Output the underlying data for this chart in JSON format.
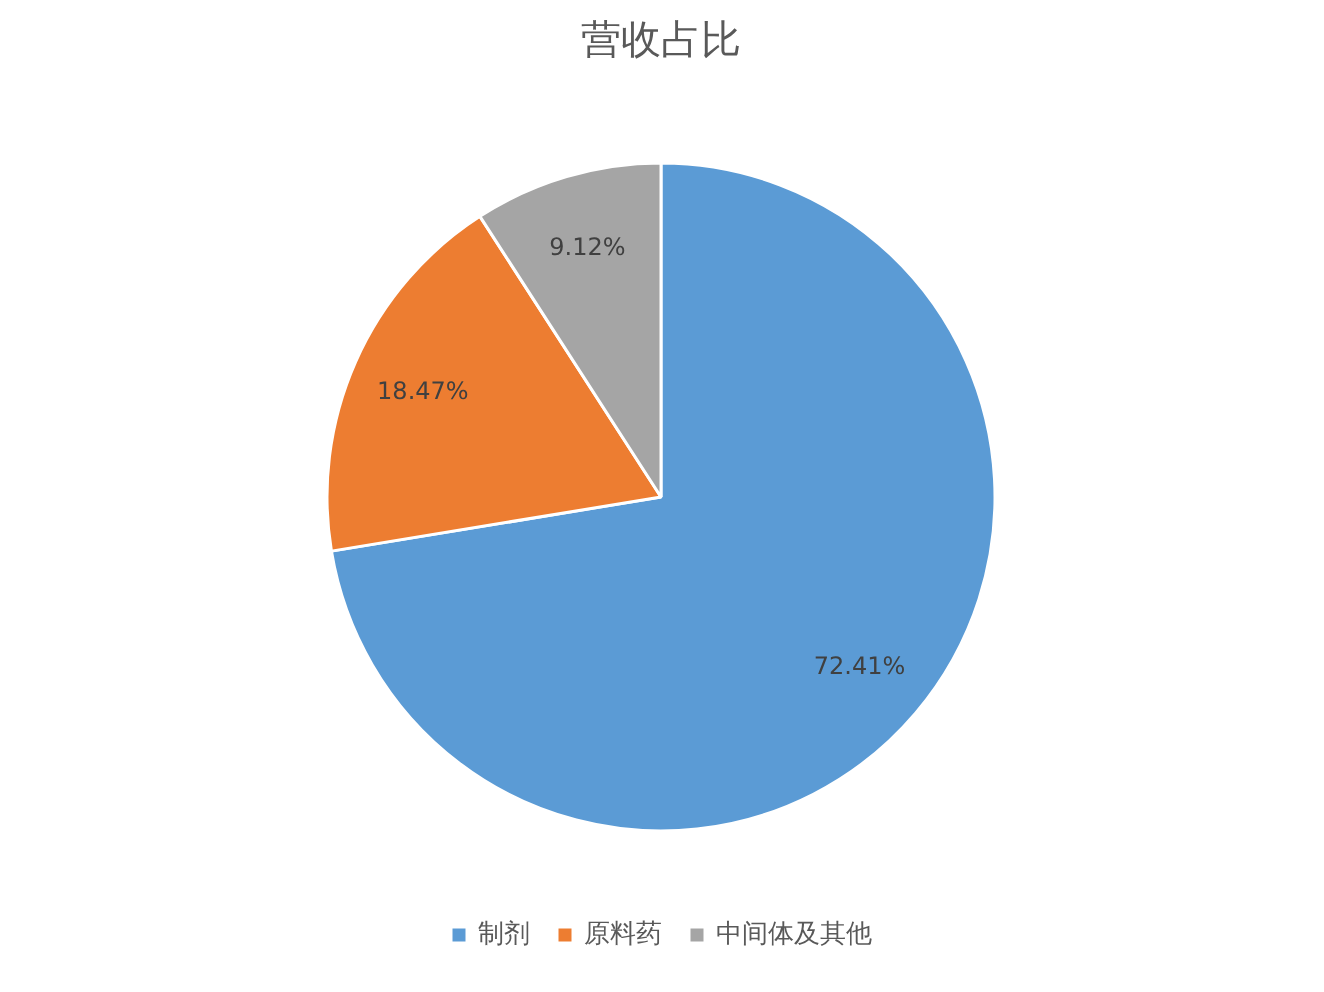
{
  "chart_data": {
    "type": "pie",
    "title": "营收占比",
    "categories": [
      "制剂",
      "原料药",
      "中间体及其他"
    ],
    "values": [
      72.41,
      18.47,
      9.12
    ],
    "colors": [
      "#5b9bd5",
      "#ed7d31",
      "#a5a5a5"
    ],
    "value_labels": [
      "72.41%",
      "18.47%",
      "9.12%"
    ],
    "legend": "bottom"
  }
}
